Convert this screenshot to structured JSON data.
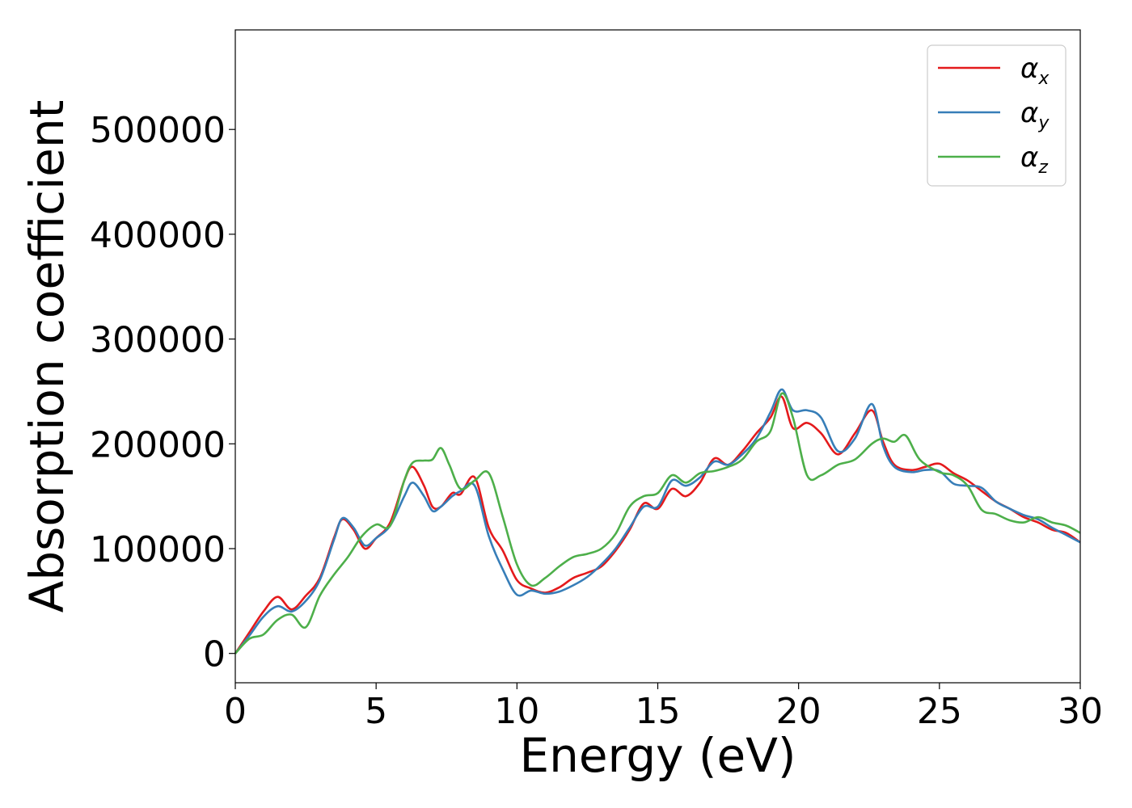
{
  "chart_data": {
    "type": "line",
    "xlabel": "Energy (eV)",
    "ylabel": "Absorption coefficient",
    "xlim": [
      0,
      30
    ],
    "ylim": [
      -28000,
      595000
    ],
    "xticks": [
      0,
      5,
      10,
      15,
      20,
      25,
      30
    ],
    "xtick_labels": [
      "0",
      "5",
      "10",
      "15",
      "20",
      "25",
      "30"
    ],
    "yticks": [
      0,
      100000,
      200000,
      300000,
      400000,
      500000
    ],
    "ytick_labels": [
      "0",
      "100000",
      "200000",
      "300000",
      "400000",
      "500000"
    ],
    "grid": false,
    "legend_position": "top-right",
    "series": [
      {
        "name": "α_x",
        "label_main": "α",
        "label_sub": "x",
        "color": "#e41a1c",
        "x": [
          0,
          0.5,
          1,
          1.5,
          2,
          2.5,
          3,
          3.5,
          3.8,
          4.2,
          4.6,
          5,
          5.5,
          6,
          6.3,
          6.7,
          7,
          7.3,
          7.7,
          8,
          8.5,
          9,
          9.5,
          10,
          10.5,
          11,
          11.5,
          12,
          12.5,
          13,
          13.5,
          14,
          14.5,
          15,
          15.5,
          16,
          16.5,
          17,
          17.5,
          18,
          18.5,
          19,
          19.4,
          19.8,
          20.3,
          20.8,
          21.4,
          22,
          22.6,
          23,
          23.4,
          24,
          24.5,
          25,
          25.5,
          26,
          26.5,
          27,
          27.5,
          28,
          28.5,
          29,
          29.5,
          30
        ],
        "y": [
          0,
          20000,
          40000,
          54000,
          42000,
          55000,
          72000,
          110000,
          128000,
          118000,
          100000,
          110000,
          125000,
          165000,
          178000,
          160000,
          140000,
          140000,
          153000,
          152000,
          168000,
          120000,
          98000,
          70000,
          62000,
          58000,
          63000,
          72000,
          77000,
          83000,
          98000,
          118000,
          143000,
          138000,
          157000,
          150000,
          163000,
          186000,
          180000,
          193000,
          210000,
          225000,
          245000,
          215000,
          220000,
          210000,
          190000,
          210000,
          232000,
          202000,
          180000,
          175000,
          178000,
          181000,
          172000,
          165000,
          155000,
          145000,
          138000,
          130000,
          125000,
          118000,
          115000,
          106000
        ]
      },
      {
        "name": "α_y",
        "label_main": "α",
        "label_sub": "y",
        "color": "#377eb8",
        "x": [
          0,
          0.5,
          1,
          1.5,
          2,
          2.5,
          3,
          3.5,
          3.8,
          4.2,
          4.6,
          5,
          5.5,
          6,
          6.3,
          6.7,
          7,
          7.3,
          7.7,
          8,
          8.5,
          9,
          9.5,
          10,
          10.5,
          11,
          11.5,
          12,
          12.5,
          13,
          13.5,
          14,
          14.5,
          15,
          15.5,
          16,
          16.5,
          17,
          17.5,
          18,
          18.5,
          19,
          19.4,
          19.8,
          20.3,
          20.8,
          21.4,
          22,
          22.6,
          23,
          23.4,
          24,
          24.5,
          25,
          25.5,
          26,
          26.5,
          27,
          27.5,
          28,
          28.5,
          29,
          29.5,
          30
        ],
        "y": [
          0,
          17000,
          35000,
          45000,
          40000,
          50000,
          70000,
          108000,
          129000,
          120000,
          103000,
          110000,
          122000,
          150000,
          163000,
          150000,
          136000,
          140000,
          150000,
          155000,
          160000,
          112000,
          80000,
          56000,
          60000,
          57000,
          59000,
          65000,
          73000,
          85000,
          100000,
          120000,
          140000,
          140000,
          165000,
          160000,
          168000,
          183000,
          180000,
          190000,
          205000,
          230000,
          252000,
          232000,
          232000,
          225000,
          193000,
          205000,
          238000,
          198000,
          178000,
          173000,
          175000,
          174000,
          162000,
          160000,
          158000,
          145000,
          138000,
          132000,
          128000,
          120000,
          113000,
          106000
        ]
      },
      {
        "name": "α_z",
        "label_main": "α",
        "label_sub": "z",
        "color": "#4daf4a",
        "x": [
          0,
          0.5,
          1,
          1.5,
          2,
          2.5,
          3,
          3.5,
          4,
          4.5,
          5,
          5.5,
          6,
          6.3,
          6.7,
          7,
          7.3,
          7.6,
          8,
          8.5,
          9,
          9.5,
          10,
          10.5,
          11,
          11.5,
          12,
          12.5,
          13,
          13.5,
          14,
          14.5,
          15,
          15.5,
          16,
          16.5,
          17,
          17.5,
          18,
          18.5,
          19,
          19.4,
          19.8,
          20.3,
          20.8,
          21.4,
          22,
          22.6,
          23,
          23.4,
          23.8,
          24.3,
          25,
          25.5,
          26,
          26.5,
          27,
          27.5,
          28,
          28.5,
          29,
          29.5,
          30
        ],
        "y": [
          0,
          14000,
          18000,
          32000,
          37000,
          25000,
          55000,
          75000,
          92000,
          112000,
          123000,
          122000,
          165000,
          182000,
          184000,
          185000,
          196000,
          180000,
          157000,
          165000,
          172000,
          130000,
          85000,
          65000,
          72000,
          83000,
          92000,
          95000,
          100000,
          114000,
          140000,
          150000,
          153000,
          170000,
          163000,
          172000,
          174000,
          178000,
          185000,
          202000,
          212000,
          248000,
          225000,
          170000,
          170000,
          180000,
          185000,
          200000,
          205000,
          202000,
          208000,
          185000,
          173000,
          170000,
          160000,
          137000,
          133000,
          127000,
          125000,
          130000,
          125000,
          122000,
          115000
        ]
      }
    ]
  }
}
